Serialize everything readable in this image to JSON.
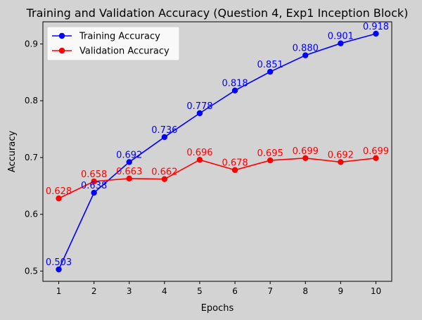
{
  "chart_data": {
    "type": "line",
    "title": "Training and Validation Accuracy (Question 4, Exp1 Inception Block)",
    "xlabel": "Epochs",
    "ylabel": "Accuracy",
    "x": [
      1,
      2,
      3,
      4,
      5,
      6,
      7,
      8,
      9,
      10
    ],
    "xlim": [
      0.55,
      10.45
    ],
    "ylim": [
      0.482,
      0.939
    ],
    "yticks": [
      0.5,
      0.6,
      0.7,
      0.8,
      0.9
    ],
    "ytick_labels": [
      "0.5",
      "0.6",
      "0.7",
      "0.8",
      "0.9"
    ],
    "xtick_labels": [
      "1",
      "2",
      "3",
      "4",
      "5",
      "6",
      "7",
      "8",
      "9",
      "10"
    ],
    "grid": false,
    "legend_position": "upper-left",
    "background": "#d3d3d3",
    "series": [
      {
        "name": "Training Accuracy",
        "color": "#0000ff",
        "values": [
          0.503,
          0.638,
          0.692,
          0.736,
          0.778,
          0.818,
          0.851,
          0.88,
          0.901,
          0.918
        ],
        "labels": [
          "0.503",
          "0.638",
          "0.692",
          "0.736",
          "0.778",
          "0.818",
          "0.851",
          "0.880",
          "0.901",
          "0.918"
        ]
      },
      {
        "name": "Validation Accuracy",
        "color": "#ff0000",
        "values": [
          0.628,
          0.658,
          0.663,
          0.662,
          0.696,
          0.678,
          0.695,
          0.699,
          0.692,
          0.699
        ],
        "labels": [
          "0.628",
          "0.658",
          "0.663",
          "0.662",
          "0.696",
          "0.678",
          "0.695",
          "0.699",
          "0.692",
          "0.699"
        ]
      }
    ]
  }
}
